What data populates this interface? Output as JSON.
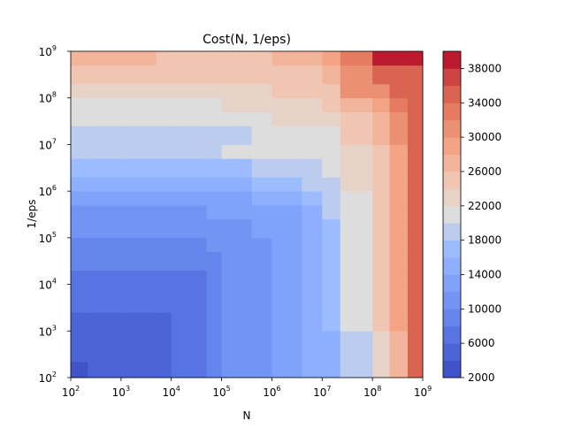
{
  "chart_data": {
    "type": "heatmap",
    "title": "Cost(N, 1/eps)",
    "xlabel": "N",
    "ylabel": "1/eps",
    "x_scale": "log",
    "y_scale": "log",
    "xlim": [
      100,
      1000000000
    ],
    "ylim": [
      100,
      1000000000
    ],
    "x_ticks": [
      {
        "base": "10",
        "exp": "2"
      },
      {
        "base": "10",
        "exp": "3"
      },
      {
        "base": "10",
        "exp": "4"
      },
      {
        "base": "10",
        "exp": "5"
      },
      {
        "base": "10",
        "exp": "6"
      },
      {
        "base": "10",
        "exp": "7"
      },
      {
        "base": "10",
        "exp": "8"
      },
      {
        "base": "10",
        "exp": "9"
      }
    ],
    "y_ticks": [
      {
        "base": "10",
        "exp": "2"
      },
      {
        "base": "10",
        "exp": "3"
      },
      {
        "base": "10",
        "exp": "4"
      },
      {
        "base": "10",
        "exp": "5"
      },
      {
        "base": "10",
        "exp": "6"
      },
      {
        "base": "10",
        "exp": "7"
      },
      {
        "base": "10",
        "exp": "8"
      },
      {
        "base": "10",
        "exp": "9"
      }
    ],
    "colormap": "coolwarm",
    "grid": false,
    "colorbar": {
      "min": 2000,
      "max": 40000,
      "levels": [
        2000,
        4000,
        6000,
        8000,
        10000,
        12000,
        14000,
        16000,
        18000,
        20000,
        22000,
        24000,
        26000,
        28000,
        30000,
        32000,
        34000,
        36000,
        38000,
        40000
      ],
      "tick_labels": [
        "2000",
        "6000",
        "10000",
        "14000",
        "18000",
        "22000",
        "26000",
        "30000",
        "34000",
        "38000"
      ]
    },
    "x_edges_exponent": [
      2.0,
      2.34,
      3.0,
      3.7,
      4.0,
      4.7,
      5.0,
      5.6,
      6.0,
      6.6,
      7.0,
      7.36,
      8.0,
      8.34,
      8.7,
      9.0
    ],
    "y_edges_exponent": [
      2.0,
      2.34,
      3.0,
      3.4,
      4.0,
      4.3,
      4.7,
      5.0,
      5.4,
      5.7,
      6.0,
      6.3,
      6.7,
      7.0,
      7.4,
      7.7,
      8.0,
      8.3,
      8.7,
      9.0
    ],
    "cost_rows_bottom_to_top": [
      [
        3000,
        5000,
        5000,
        5000,
        7000,
        9000,
        11000,
        11000,
        13000,
        15000,
        15000,
        19000,
        23000,
        27000,
        35000
      ],
      [
        5000,
        5000,
        5000,
        5000,
        7000,
        9000,
        11000,
        11000,
        13000,
        15000,
        15000,
        19000,
        23000,
        27000,
        35000
      ],
      [
        5000,
        5000,
        5000,
        5000,
        7000,
        9000,
        11000,
        11000,
        13000,
        15000,
        17000,
        21000,
        25000,
        29000,
        35000
      ],
      [
        7000,
        7000,
        7000,
        7000,
        7000,
        9000,
        11000,
        11000,
        13000,
        15000,
        17000,
        21000,
        25000,
        29000,
        35000
      ],
      [
        7000,
        7000,
        7000,
        7000,
        7000,
        9000,
        11000,
        11000,
        13000,
        15000,
        17000,
        21000,
        25000,
        29000,
        35000
      ],
      [
        9000,
        9000,
        9000,
        9000,
        9000,
        9000,
        11000,
        11000,
        13000,
        15000,
        17000,
        21000,
        25000,
        29000,
        35000
      ],
      [
        9000,
        9000,
        9000,
        9000,
        9000,
        11000,
        11000,
        11000,
        13000,
        15000,
        17000,
        21000,
        25000,
        29000,
        35000
      ],
      [
        11000,
        11000,
        11000,
        11000,
        11000,
        11000,
        11000,
        13000,
        13000,
        15000,
        17000,
        21000,
        25000,
        29000,
        35000
      ],
      [
        11000,
        11000,
        11000,
        11000,
        11000,
        13000,
        13000,
        13000,
        13000,
        15000,
        19000,
        21000,
        25000,
        29000,
        35000
      ],
      [
        13000,
        13000,
        13000,
        13000,
        13000,
        13000,
        13000,
        15000,
        15000,
        17000,
        19000,
        21000,
        25000,
        29000,
        35000
      ],
      [
        15000,
        15000,
        15000,
        15000,
        15000,
        15000,
        15000,
        17000,
        17000,
        19000,
        19000,
        23000,
        25000,
        29000,
        35000
      ],
      [
        17000,
        17000,
        17000,
        17000,
        17000,
        17000,
        17000,
        19000,
        19000,
        19000,
        21000,
        23000,
        25000,
        29000,
        35000
      ],
      [
        19000,
        19000,
        19000,
        19000,
        19000,
        19000,
        21000,
        21000,
        21000,
        21000,
        21000,
        23000,
        25000,
        29000,
        35000
      ],
      [
        19000,
        19000,
        19000,
        19000,
        19000,
        19000,
        19000,
        21000,
        21000,
        21000,
        21000,
        25000,
        27000,
        31000,
        35000
      ],
      [
        21000,
        21000,
        21000,
        21000,
        21000,
        21000,
        21000,
        21000,
        23000,
        23000,
        23000,
        25000,
        27000,
        31000,
        35000
      ],
      [
        21000,
        21000,
        21000,
        21000,
        21000,
        21000,
        23000,
        23000,
        23000,
        23000,
        25000,
        27000,
        29000,
        33000,
        35000
      ],
      [
        23000,
        23000,
        23000,
        23000,
        23000,
        23000,
        23000,
        23000,
        25000,
        25000,
        25000,
        31000,
        31000,
        35000,
        35000
      ],
      [
        25000,
        25000,
        25000,
        25000,
        25000,
        25000,
        25000,
        25000,
        25000,
        25000,
        27000,
        31000,
        35000,
        35000,
        35000
      ],
      [
        27000,
        27000,
        27000,
        25000,
        25000,
        25000,
        25000,
        25000,
        27000,
        27000,
        29000,
        33000,
        39000,
        39000,
        39000
      ]
    ]
  }
}
